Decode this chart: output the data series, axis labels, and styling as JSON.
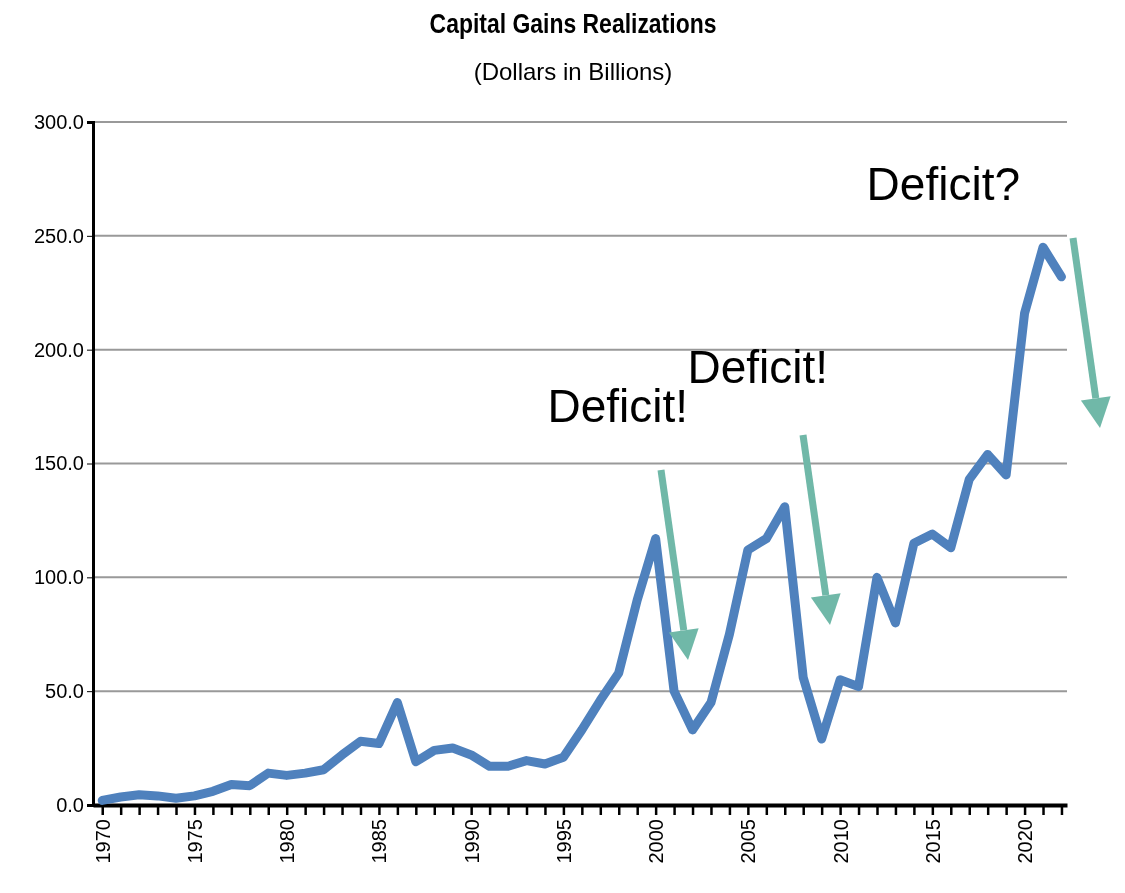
{
  "chart_data": {
    "type": "line",
    "title": "Capital Gains Realizations",
    "subtitle": "(Dollars in Billions)",
    "x": [
      1970,
      1971,
      1972,
      1973,
      1974,
      1975,
      1976,
      1977,
      1978,
      1979,
      1980,
      1981,
      1982,
      1983,
      1984,
      1985,
      1986,
      1987,
      1988,
      1989,
      1990,
      1991,
      1992,
      1993,
      1994,
      1995,
      1996,
      1997,
      1998,
      1999,
      2000,
      2001,
      2002,
      2003,
      2004,
      2005,
      2006,
      2007,
      2008,
      2009,
      2010,
      2011,
      2012,
      2013,
      2014,
      2015,
      2016,
      2017,
      2018,
      2019,
      2020,
      2021,
      2022
    ],
    "series": [
      {
        "color": "#4f81bd",
        "values": [
          2,
          3.5,
          4.5,
          4,
          3,
          4,
          6,
          9,
          8.5,
          14,
          13,
          14,
          15.5,
          22,
          28,
          27,
          45,
          19,
          24,
          25,
          22,
          17,
          17,
          19.5,
          18,
          21,
          33,
          46,
          58,
          90,
          117,
          50,
          33,
          45,
          75,
          112,
          117,
          131,
          56,
          29,
          55,
          52,
          100,
          80,
          115,
          119,
          113,
          143,
          154,
          145,
          216,
          245,
          232
        ]
      }
    ],
    "xlim": [
      1969.5,
      2022.3
    ],
    "xticks": [
      1970,
      {
        "value": 1971,
        "label": null
      },
      {
        "value": 1972,
        "label": null
      },
      {
        "value": 1973,
        "label": null
      },
      {
        "value": 1974,
        "label": null
      },
      1975,
      {
        "value": 1976,
        "label": null
      },
      {
        "value": 1977,
        "label": null
      },
      {
        "value": 1978,
        "label": null
      },
      {
        "value": 1979,
        "label": null
      },
      1980,
      {
        "value": 1981,
        "label": null
      },
      {
        "value": 1982,
        "label": null
      },
      {
        "value": 1983,
        "label": null
      },
      {
        "value": 1984,
        "label": null
      },
      1985,
      {
        "value": 1986,
        "label": null
      },
      {
        "value": 1987,
        "label": null
      },
      {
        "value": 1988,
        "label": null
      },
      {
        "value": 1989,
        "label": null
      },
      1990,
      {
        "value": 1991,
        "label": null
      },
      {
        "value": 1992,
        "label": null
      },
      {
        "value": 1993,
        "label": null
      },
      {
        "value": 1994,
        "label": null
      },
      1995,
      {
        "value": 1996,
        "label": null
      },
      {
        "value": 1997,
        "label": null
      },
      {
        "value": 1998,
        "label": null
      },
      {
        "value": 1999,
        "label": null
      },
      2000,
      {
        "value": 2001,
        "label": null
      },
      {
        "value": 2002,
        "label": null
      },
      {
        "value": 2003,
        "label": null
      },
      {
        "value": 2004,
        "label": null
      },
      2005,
      {
        "value": 2006,
        "label": null
      },
      {
        "value": 2007,
        "label": null
      },
      {
        "value": 2008,
        "label": null
      },
      {
        "value": 2009,
        "label": null
      },
      2010,
      {
        "value": 2011,
        "label": null
      },
      {
        "value": 2012,
        "label": null
      },
      {
        "value": 2013,
        "label": null
      },
      {
        "value": 2014,
        "label": null
      },
      2015,
      {
        "value": 2016,
        "label": null
      },
      {
        "value": 2017,
        "label": null
      },
      {
        "value": 2018,
        "label": null
      },
      {
        "value": 2019,
        "label": null
      },
      2020,
      {
        "value": 2021,
        "label": null
      },
      {
        "value": 2022,
        "label": null
      }
    ],
    "ylim": [
      0,
      300
    ],
    "yticks": [
      {
        "value": 0,
        "label": "0.0"
      },
      {
        "value": 50,
        "label": "50.0"
      },
      {
        "value": 100,
        "label": "100.0"
      },
      {
        "value": 150,
        "label": "150.0"
      },
      {
        "value": 200,
        "label": "200.0"
      },
      {
        "value": 250,
        "label": "250.0"
      },
      {
        "value": 300,
        "label": "300.0"
      }
    ],
    "grid": "y",
    "marker": "none",
    "line_style": "solid",
    "annotations": [
      "Deficit!",
      "Deficit!",
      "Deficit?"
    ]
  }
}
